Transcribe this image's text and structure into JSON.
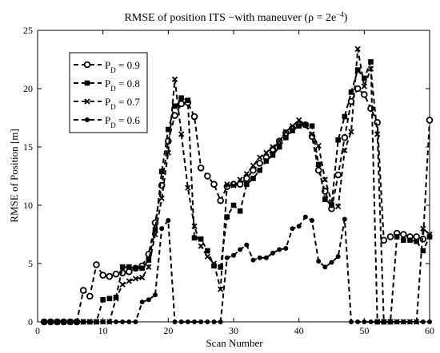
{
  "chart_data": {
    "type": "line",
    "title": "RMSE of position ITS −with maneuver (ρ = 2e",
    "title_exponent": "−4",
    "title_close": ")",
    "xlabel": "Scan Number",
    "ylabel": "RMSE of Position [m]",
    "xlim": [
      0,
      60
    ],
    "ylim": [
      0,
      25
    ],
    "xticks": [
      "0",
      "10",
      "20",
      "30",
      "40",
      "50",
      "60"
    ],
    "yticks": [
      "0",
      "5",
      "10",
      "15",
      "20",
      "25"
    ],
    "grid": false,
    "legend_position": "upper-left",
    "colors": {
      "line": "#000000",
      "background": "#ffffff"
    },
    "legend": [
      {
        "base": "P",
        "sub": "D",
        "text": " = 0.9",
        "marker": "open-circle"
      },
      {
        "base": "P",
        "sub": "D",
        "text": " = 0.8",
        "marker": "square"
      },
      {
        "base": "P",
        "sub": "D",
        "text": " = 0.7",
        "marker": "x"
      },
      {
        "base": "P",
        "sub": "D",
        "text": " = 0.6",
        "marker": "dot"
      }
    ],
    "x": [
      1,
      2,
      3,
      4,
      5,
      6,
      7,
      8,
      9,
      10,
      11,
      12,
      13,
      14,
      15,
      16,
      17,
      18,
      19,
      20,
      21,
      22,
      23,
      24,
      25,
      26,
      27,
      28,
      29,
      30,
      31,
      32,
      33,
      34,
      35,
      36,
      37,
      38,
      39,
      40,
      41,
      42,
      43,
      44,
      45,
      46,
      47,
      48,
      49,
      50,
      51,
      52,
      53,
      54,
      55,
      56,
      57,
      58,
      59,
      60
    ],
    "series": [
      {
        "marker": "open-circle",
        "values": [
          0,
          0,
          0,
          0,
          0,
          0,
          2.7,
          2.2,
          4.9,
          4.0,
          3.9,
          4.1,
          4.2,
          4.3,
          4.6,
          4.8,
          5.8,
          8.5,
          11.7,
          15.5,
          17.7,
          18.7,
          18.8,
          17.6,
          13.2,
          12.5,
          11.8,
          10.4,
          11.6,
          11.8,
          11.8,
          12.3,
          13.0,
          13.6,
          14.1,
          14.8,
          15.5,
          16.2,
          16.6,
          16.9,
          16.9,
          15.9,
          13.0,
          11.2,
          9.7,
          12.6,
          15.8,
          18.9,
          20.0,
          19.5,
          18.3,
          17.1,
          7.0,
          7.3,
          7.6,
          7.5,
          7.3,
          7.3,
          7.1,
          17.3
        ]
      },
      {
        "marker": "square",
        "values": [
          0,
          0,
          0,
          0,
          0,
          0,
          0,
          0,
          0,
          1.9,
          2.0,
          2.1,
          4.7,
          4.7,
          4.6,
          4.6,
          5.3,
          7.9,
          12.9,
          16.5,
          18.5,
          19.2,
          19.0,
          7.2,
          7.1,
          6.1,
          4.8,
          4.7,
          9.0,
          10.0,
          9.5,
          11.8,
          12.3,
          13.0,
          13.8,
          14.3,
          15.0,
          15.8,
          16.4,
          16.8,
          16.9,
          16.8,
          13.5,
          10.5,
          10.0,
          15.6,
          17.6,
          19.7,
          21.6,
          20.9,
          22.3,
          0,
          0,
          0,
          7.3,
          7.0,
          7.0,
          6.9,
          6.1,
          7.3
        ]
      },
      {
        "marker": "x",
        "values": [
          0,
          0,
          0,
          0,
          0,
          0,
          0,
          0,
          0,
          0,
          0,
          2.0,
          3.2,
          3.5,
          3.7,
          3.8,
          4.7,
          7.5,
          10.6,
          14.5,
          20.8,
          16.1,
          11.5,
          8.2,
          6.5,
          5.6,
          5.0,
          2.8,
          11.8,
          11.7,
          12.2,
          12.7,
          13.4,
          14.1,
          14.5,
          15.0,
          15.5,
          16.3,
          16.8,
          17.3,
          16.9,
          16.1,
          15.1,
          12.2,
          10.3,
          9.9,
          14.7,
          16.3,
          23.4,
          20.2,
          21.7,
          16.1,
          0,
          0,
          0,
          0,
          0,
          0,
          8.0,
          7.5
        ]
      },
      {
        "marker": "dot",
        "values": [
          0,
          0,
          0,
          0,
          0,
          0,
          0,
          0,
          0,
          0,
          0,
          0,
          0,
          0,
          0,
          1.7,
          1.9,
          2.3,
          8.0,
          8.7,
          0,
          0,
          0,
          0,
          0,
          0,
          0,
          0,
          5.5,
          5.7,
          6.2,
          6.6,
          5.3,
          5.5,
          5.5,
          5.9,
          6.2,
          6.3,
          8.0,
          8.2,
          9.0,
          8.7,
          5.2,
          4.7,
          5.1,
          5.6,
          8.8,
          0,
          0,
          0,
          0,
          0,
          0,
          0,
          0,
          0,
          0,
          0,
          0,
          0
        ]
      }
    ]
  }
}
